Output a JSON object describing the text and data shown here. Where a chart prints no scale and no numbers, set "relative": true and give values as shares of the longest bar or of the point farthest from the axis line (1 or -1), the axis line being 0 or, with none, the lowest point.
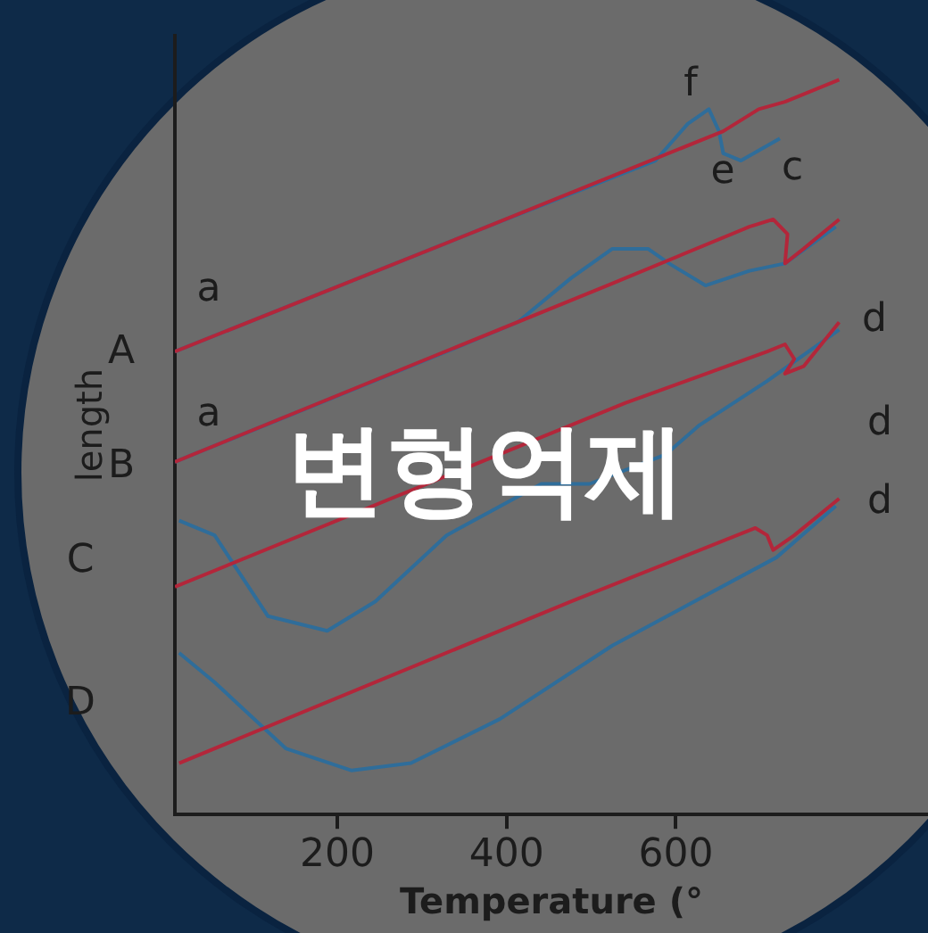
{
  "chart_data": {
    "type": "line",
    "title": "변형억제",
    "xlabel": "Temperature (°",
    "ylabel": "length",
    "relative": true,
    "xlim": [
      8,
      898
    ],
    "xticks": [
      200,
      400,
      600
    ],
    "grid": false,
    "legend": false,
    "marker": "none",
    "line_style": "solid",
    "series": [
      {
        "color": "#b3263a",
        "x": [
          8,
          377,
          656,
          698,
          729,
          793
        ],
        "values": [
          0.63,
          0.8,
          0.93,
          0.96,
          0.97,
          1.0
        ]
      },
      {
        "color": "#2f6d9a",
        "x": [
          723,
          677,
          656,
          651,
          639,
          614,
          576,
          377,
          8
        ],
        "values": [
          0.92,
          0.89,
          0.9,
          0.93,
          0.96,
          0.94,
          0.89,
          0.8,
          0.63
        ]
      },
      {
        "color": "#b3263a",
        "x": [
          8,
          519,
          687,
          715,
          732,
          729,
          751,
          793
        ],
        "values": [
          0.48,
          0.72,
          0.8,
          0.81,
          0.79,
          0.75,
          0.77,
          0.81
        ]
      },
      {
        "color": "#2f6d9a",
        "x": [
          789,
          729,
          687,
          635,
          592,
          567,
          525,
          476,
          413,
          329,
          8
        ],
        "values": [
          0.8,
          0.75,
          0.74,
          0.72,
          0.75,
          0.77,
          0.77,
          0.73,
          0.67,
          0.63,
          0.48
        ]
      },
      {
        "color": "#b3263a",
        "x": [
          8,
          540,
          708,
          729,
          740,
          729,
          751,
          793
        ],
        "values": [
          0.31,
          0.56,
          0.63,
          0.64,
          0.62,
          0.6,
          0.61,
          0.67
        ]
      },
      {
        "color": "#2f6d9a",
        "x": [
          793,
          708,
          628,
          588,
          498,
          441,
          329,
          245,
          188,
          118,
          55,
          13
        ],
        "values": [
          0.66,
          0.59,
          0.53,
          0.49,
          0.45,
          0.45,
          0.38,
          0.29,
          0.25,
          0.27,
          0.38,
          0.4
        ]
      },
      {
        "color": "#b3263a",
        "x": [
          13,
          476,
          694,
          708,
          715,
          740,
          793
        ],
        "values": [
          0.07,
          0.29,
          0.39,
          0.38,
          0.36,
          0.38,
          0.43
        ]
      },
      {
        "color": "#2f6d9a",
        "x": [
          789,
          719,
          525,
          392,
          287,
          217,
          139,
          55,
          13
        ],
        "values": [
          0.42,
          0.35,
          0.23,
          0.13,
          0.07,
          0.06,
          0.09,
          0.18,
          0.22
        ]
      }
    ],
    "annotations": [
      "a",
      "a",
      "f",
      "e",
      "c",
      "d",
      "d",
      "d",
      "A",
      "B",
      "C",
      "D"
    ]
  }
}
